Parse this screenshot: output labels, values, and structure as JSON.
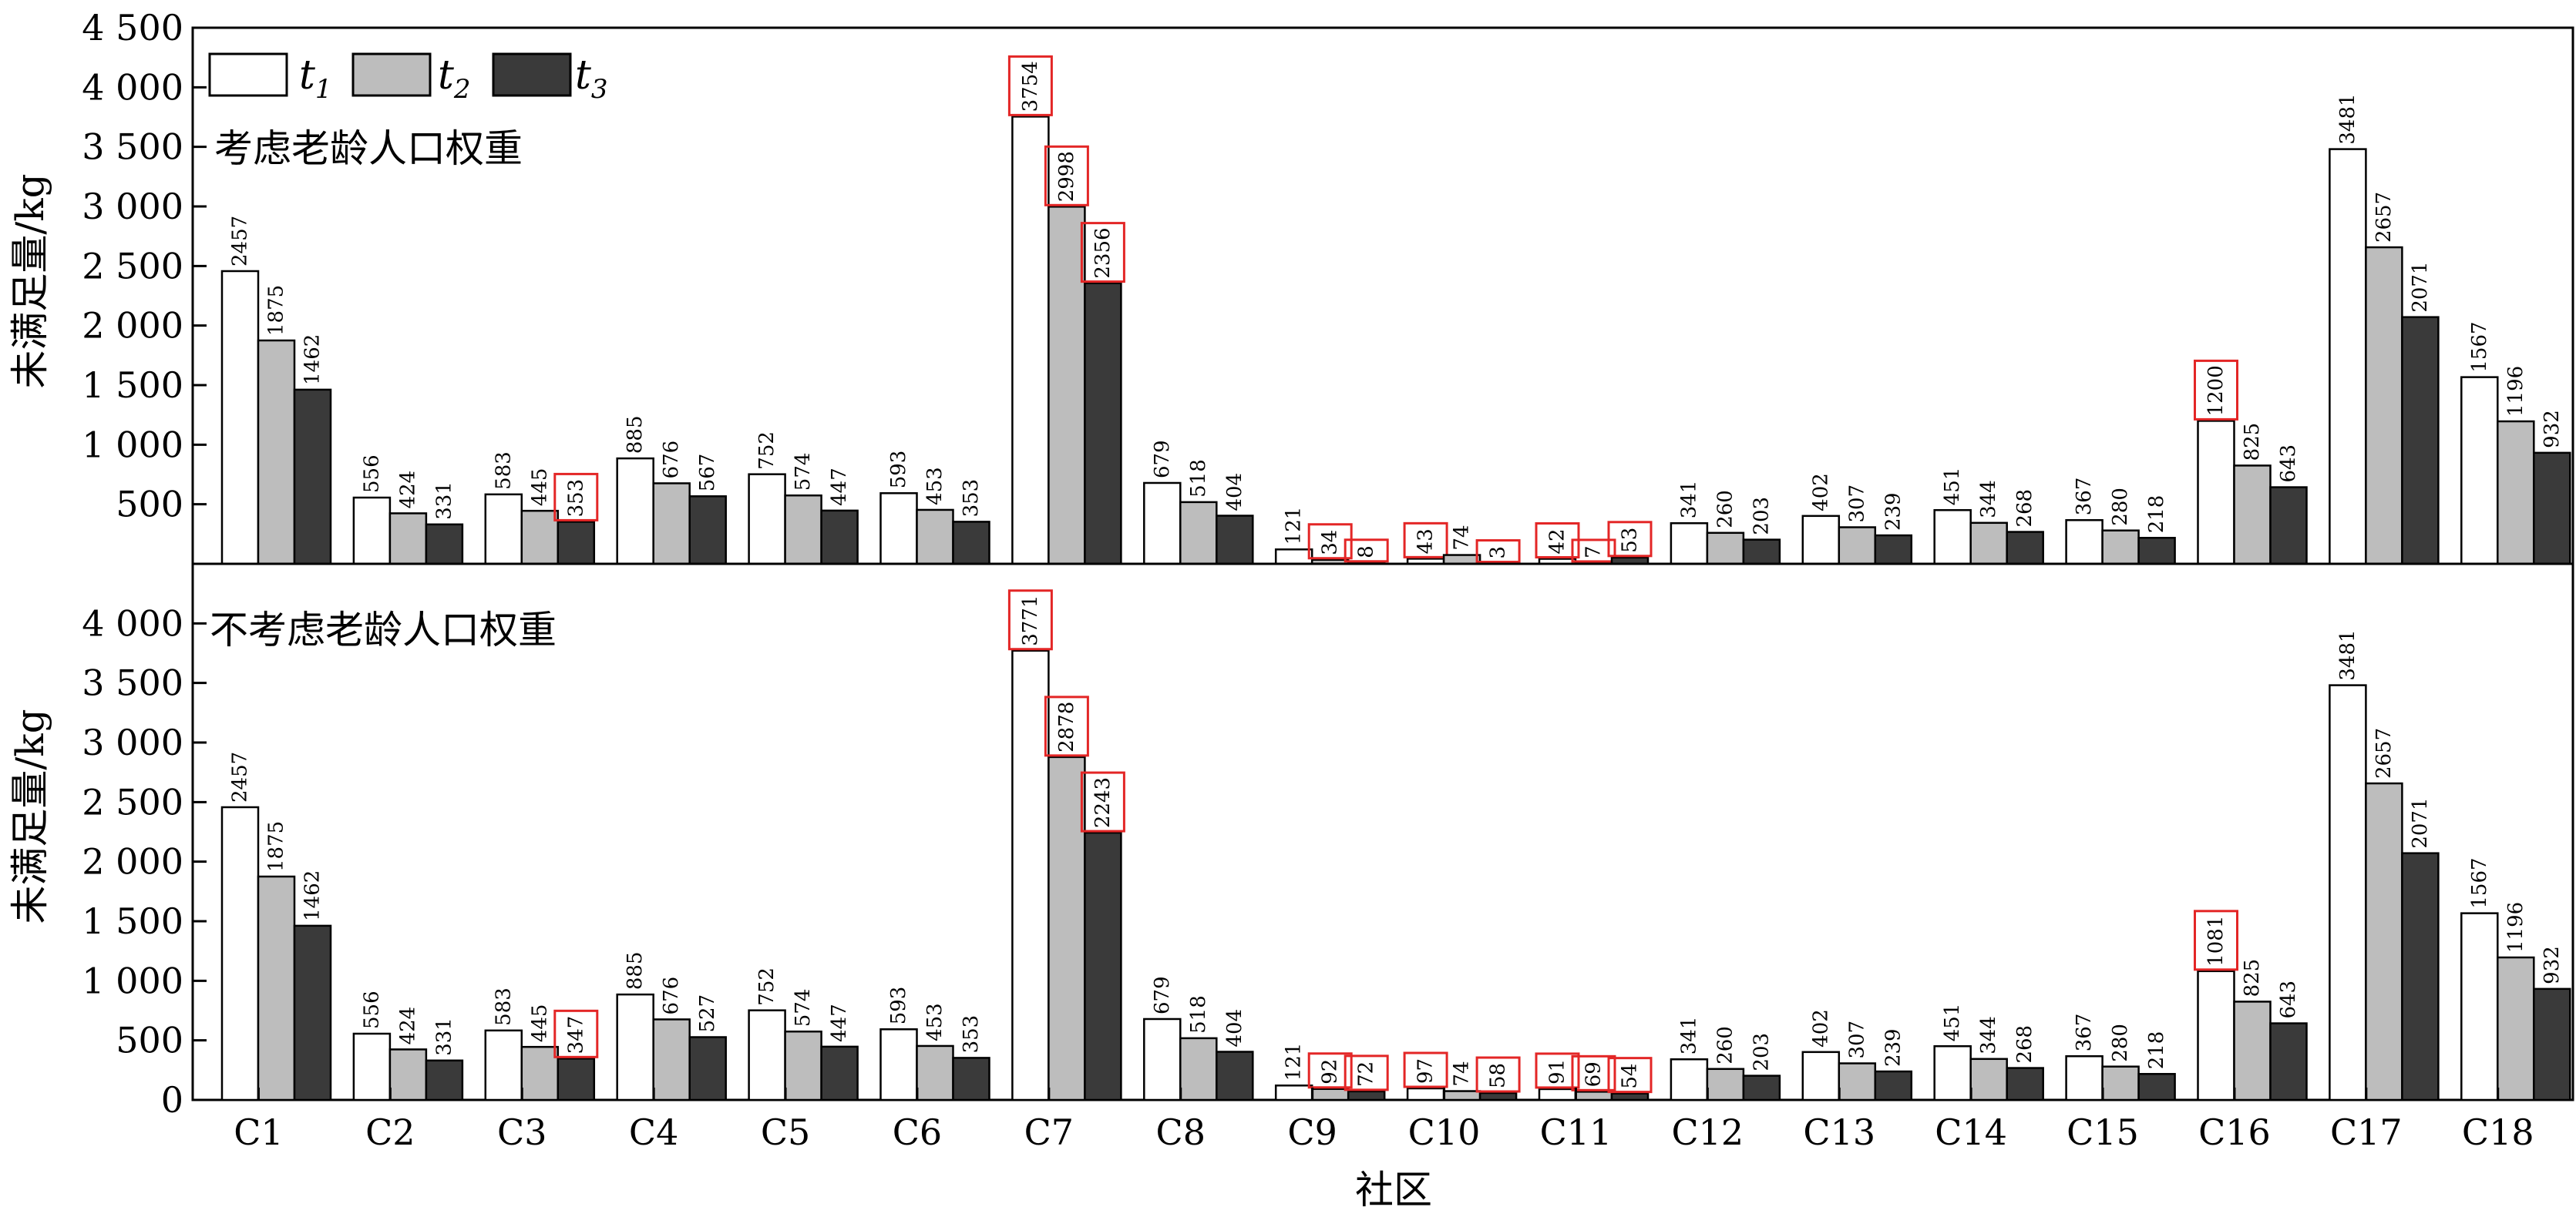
{
  "chart_data": [
    {
      "type": "bar",
      "annotation": "考虑老龄人口权重",
      "ylabel": "未满足量/kg",
      "ylim": [
        0,
        4500
      ],
      "yticks": [
        500,
        1000,
        1500,
        2000,
        2500,
        3000,
        3500,
        4000,
        4500
      ],
      "ytick_labels": [
        "500",
        "1 000",
        "1 500",
        "2 000",
        "2 500",
        "3 000",
        "3 500",
        "4 000",
        "4 500"
      ],
      "xlabel": "",
      "legend": {
        "position": "top-left"
      },
      "categories": [
        "C1",
        "C2",
        "C3",
        "C4",
        "C5",
        "C6",
        "C7",
        "C8",
        "C9",
        "C10",
        "C11",
        "C12",
        "C13",
        "C14",
        "C15",
        "C16",
        "C17",
        "C18"
      ],
      "series": [
        {
          "name": "t1",
          "legend_base": "t",
          "legend_sub": "1",
          "color": "#ffffff",
          "values": [
            2457,
            556,
            583,
            885,
            752,
            593,
            3754,
            679,
            121,
            43,
            42,
            341,
            402,
            451,
            367,
            1200,
            3481,
            1567
          ]
        },
        {
          "name": "t2",
          "legend_base": "t",
          "legend_sub": "2",
          "color": "#bdbdbd",
          "values": [
            1875,
            424,
            445,
            676,
            574,
            453,
            2998,
            518,
            34,
            74,
            7,
            260,
            307,
            344,
            280,
            825,
            2657,
            1196
          ]
        },
        {
          "name": "t3",
          "legend_base": "t",
          "legend_sub": "3",
          "color": "#3a3a3a",
          "values": [
            1462,
            331,
            353,
            567,
            447,
            353,
            2356,
            404,
            8,
            3,
            53,
            203,
            239,
            268,
            218,
            643,
            2071,
            932
          ]
        }
      ],
      "highlighted": [
        {
          "series": 2,
          "category": 2
        },
        {
          "series": 0,
          "category": 6
        },
        {
          "series": 1,
          "category": 6
        },
        {
          "series": 2,
          "category": 6
        },
        {
          "series": 1,
          "category": 8
        },
        {
          "series": 2,
          "category": 8
        },
        {
          "series": 0,
          "category": 9
        },
        {
          "series": 2,
          "category": 9
        },
        {
          "series": 0,
          "category": 10
        },
        {
          "series": 1,
          "category": 10
        },
        {
          "series": 2,
          "category": 10
        },
        {
          "series": 0,
          "category": 15
        }
      ],
      "highlight_color": "#e32626",
      "grid": false
    },
    {
      "type": "bar",
      "annotation": "不考虑老龄人口权重",
      "ylabel": "未满足量/kg",
      "ylim": [
        0,
        4500
      ],
      "yticks": [
        0,
        500,
        1000,
        1500,
        2000,
        2500,
        3000,
        3500,
        4000
      ],
      "ytick_labels": [
        "0",
        "500",
        "1 000",
        "1 500",
        "2 000",
        "2 500",
        "3 000",
        "3 500",
        "4 000"
      ],
      "xlabel": "社区",
      "categories": [
        "C1",
        "C2",
        "C3",
        "C4",
        "C5",
        "C6",
        "C7",
        "C8",
        "C9",
        "C10",
        "C11",
        "C12",
        "C13",
        "C14",
        "C15",
        "C16",
        "C17",
        "C18"
      ],
      "series": [
        {
          "name": "t1",
          "color": "#ffffff",
          "values": [
            2457,
            556,
            583,
            885,
            752,
            593,
            3771,
            679,
            121,
            97,
            91,
            341,
            402,
            451,
            367,
            1081,
            3481,
            1567
          ]
        },
        {
          "name": "t2",
          "color": "#bdbdbd",
          "values": [
            1875,
            424,
            445,
            676,
            574,
            453,
            2878,
            518,
            92,
            74,
            69,
            260,
            307,
            344,
            280,
            825,
            2657,
            1196
          ]
        },
        {
          "name": "t3",
          "color": "#3a3a3a",
          "values": [
            1462,
            331,
            347,
            527,
            447,
            353,
            2243,
            404,
            72,
            58,
            54,
            203,
            239,
            268,
            218,
            643,
            2071,
            932
          ]
        }
      ],
      "highlighted": [
        {
          "series": 2,
          "category": 2
        },
        {
          "series": 0,
          "category": 6
        },
        {
          "series": 1,
          "category": 6
        },
        {
          "series": 2,
          "category": 6
        },
        {
          "series": 1,
          "category": 8
        },
        {
          "series": 2,
          "category": 8
        },
        {
          "series": 0,
          "category": 9
        },
        {
          "series": 2,
          "category": 9
        },
        {
          "series": 0,
          "category": 10
        },
        {
          "series": 1,
          "category": 10
        },
        {
          "series": 2,
          "category": 10
        },
        {
          "series": 0,
          "category": 15
        }
      ],
      "highlight_color": "#e32626",
      "grid": false
    }
  ]
}
